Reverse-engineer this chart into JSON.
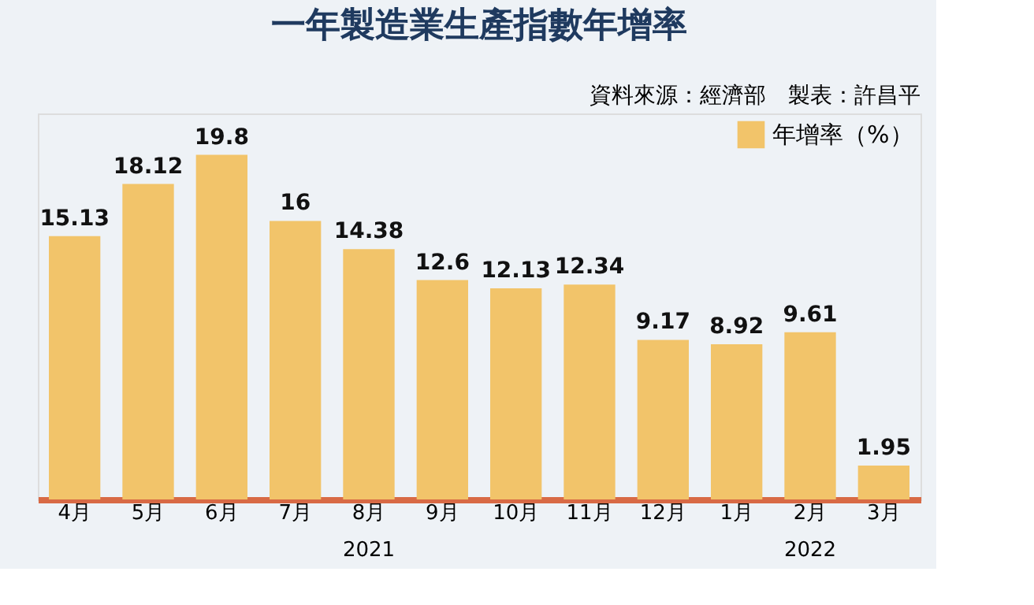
{
  "chart_data": {
    "type": "bar",
    "title": "一年製造業生產指數年增率",
    "categories": [
      "4月",
      "5月",
      "6月",
      "7月",
      "8月",
      "9月",
      "10月",
      "11月",
      "12月",
      "1月",
      "2月",
      "3月"
    ],
    "series": [
      {
        "name": "年增率（%）",
        "color": "#f2c46a",
        "values": [
          15.13,
          18.12,
          19.8,
          16,
          14.38,
          12.6,
          12.13,
          12.34,
          9.17,
          8.92,
          9.61,
          1.95
        ]
      }
    ],
    "data_labels": true,
    "legend": "top right",
    "grid": false,
    "annotations": [
      "資料來源：經濟部　製表：許昌平",
      "2021",
      "2022"
    ]
  }
}
